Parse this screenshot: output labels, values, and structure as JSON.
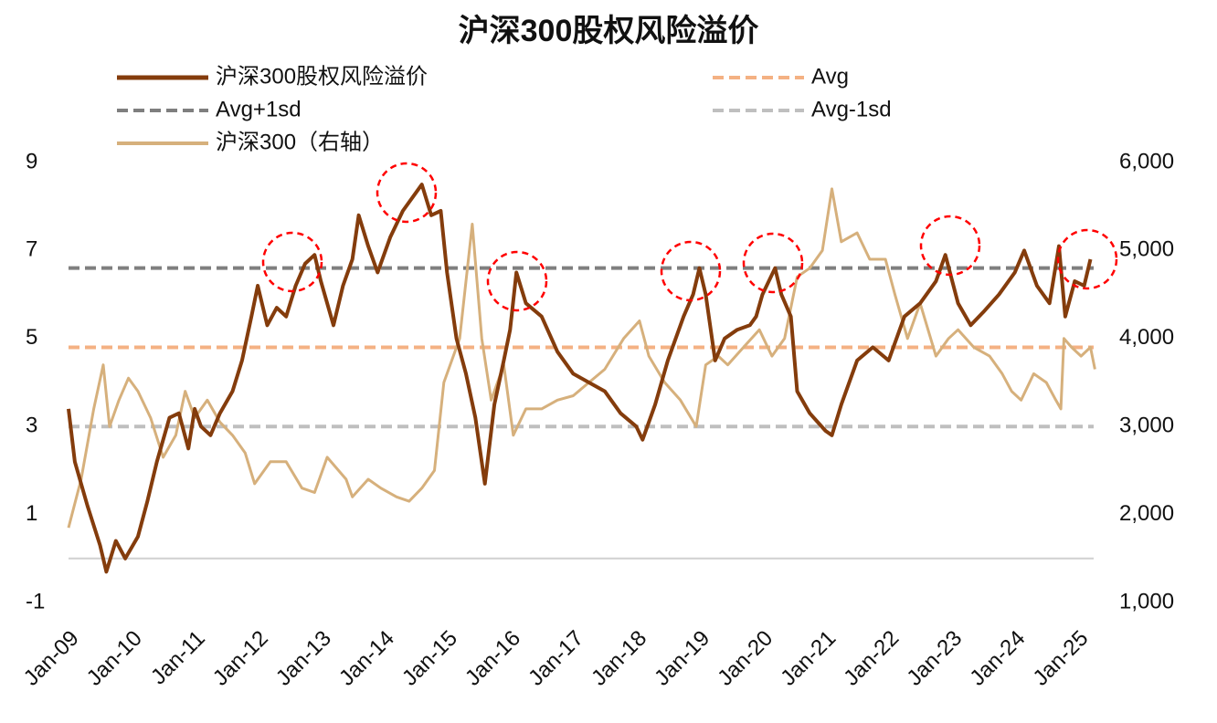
{
  "chart_data": {
    "type": "line",
    "title": "沪深300股权风险溢价",
    "xlim": [
      2009,
      2025.25
    ],
    "xticks": [
      {
        "value": 2009,
        "label": "Jan-09"
      },
      {
        "value": 2010,
        "label": "Jan-10"
      },
      {
        "value": 2011,
        "label": "Jan-11"
      },
      {
        "value": 2012,
        "label": "Jan-12"
      },
      {
        "value": 2013,
        "label": "Jan-13"
      },
      {
        "value": 2014,
        "label": "Jan-14"
      },
      {
        "value": 2015,
        "label": "Jan-15"
      },
      {
        "value": 2016,
        "label": "Jan-16"
      },
      {
        "value": 2017,
        "label": "Jan-17"
      },
      {
        "value": 2018,
        "label": "Jan-18"
      },
      {
        "value": 2019,
        "label": "Jan-19"
      },
      {
        "value": 2020,
        "label": "Jan-20"
      },
      {
        "value": 2021,
        "label": "Jan-21"
      },
      {
        "value": 2022,
        "label": "Jan-22"
      },
      {
        "value": 2023,
        "label": "Jan-23"
      },
      {
        "value": 2024,
        "label": "Jan-24"
      },
      {
        "value": 2025,
        "label": "Jan-25"
      }
    ],
    "ylim": [
      -1,
      9
    ],
    "yticks": [
      -1,
      1,
      3,
      5,
      7,
      9
    ],
    "y2lim": [
      1000,
      6000
    ],
    "y2ticks": [
      {
        "value": 1000,
        "label": "1,000"
      },
      {
        "value": 2000,
        "label": "2,000"
      },
      {
        "value": 3000,
        "label": "3,000"
      },
      {
        "value": 4000,
        "label": "4,000"
      },
      {
        "value": 5000,
        "label": "5,000"
      },
      {
        "value": 6000,
        "label": "6,000"
      }
    ],
    "baseline": 0,
    "series": [
      {
        "name": "沪深300股权风险溢价",
        "color": "#843c0c",
        "width": 4,
        "x": [
          2009.0,
          2009.1,
          2009.3,
          2009.5,
          2009.6,
          2009.75,
          2009.9,
          2010.1,
          2010.25,
          2010.4,
          2010.6,
          2010.75,
          2010.9,
          2011.0,
          2011.1,
          2011.25,
          2011.4,
          2011.6,
          2011.75,
          2011.9,
          2012.0,
          2012.15,
          2012.3,
          2012.45,
          2012.6,
          2012.75,
          2012.9,
          2013.0,
          2013.2,
          2013.35,
          2013.5,
          2013.6,
          2013.75,
          2013.9,
          2014.1,
          2014.3,
          2014.5,
          2014.6,
          2014.75,
          2014.9,
          2015.0,
          2015.15,
          2015.3,
          2015.45,
          2015.6,
          2015.75,
          2015.9,
          2016.0,
          2016.1,
          2016.25,
          2016.5,
          2016.75,
          2017.0,
          2017.25,
          2017.5,
          2017.75,
          2018.0,
          2018.1,
          2018.3,
          2018.5,
          2018.75,
          2018.9,
          2019.0,
          2019.1,
          2019.25,
          2019.4,
          2019.6,
          2019.8,
          2019.9,
          2020.0,
          2020.2,
          2020.3,
          2020.45,
          2020.55,
          2020.75,
          2021.0,
          2021.1,
          2021.25,
          2021.5,
          2021.75,
          2022.0,
          2022.25,
          2022.5,
          2022.75,
          2022.9,
          2023.1,
          2023.3,
          2023.5,
          2023.75,
          2024.0,
          2024.15,
          2024.35,
          2024.55,
          2024.7,
          2024.8,
          2024.95,
          2025.1,
          2025.2
        ],
        "values": [
          3.4,
          2.2,
          1.2,
          0.3,
          -0.3,
          0.4,
          0.0,
          0.5,
          1.3,
          2.2,
          3.2,
          3.3,
          2.5,
          3.4,
          3.0,
          2.8,
          3.3,
          3.8,
          4.5,
          5.5,
          6.2,
          5.3,
          5.7,
          5.5,
          6.2,
          6.7,
          6.9,
          6.3,
          5.3,
          6.2,
          6.8,
          7.8,
          7.1,
          6.5,
          7.3,
          7.9,
          8.3,
          8.5,
          7.8,
          7.9,
          6.5,
          5.0,
          4.2,
          3.2,
          1.7,
          3.5,
          4.5,
          5.2,
          6.5,
          5.8,
          5.5,
          4.7,
          4.2,
          4.0,
          3.8,
          3.3,
          3.0,
          2.7,
          3.5,
          4.5,
          5.5,
          6.0,
          6.6,
          6.0,
          4.5,
          5.0,
          5.2,
          5.3,
          5.5,
          6.0,
          6.6,
          6.0,
          5.5,
          3.8,
          3.3,
          2.9,
          2.8,
          3.5,
          4.5,
          4.8,
          4.5,
          5.5,
          5.8,
          6.3,
          6.9,
          5.8,
          5.3,
          5.6,
          6.0,
          6.5,
          7.0,
          6.2,
          5.8,
          7.1,
          5.5,
          6.3,
          6.2,
          6.8
        ]
      },
      {
        "name": "沪深300（右轴）",
        "color": "#d6b07c",
        "width": 3,
        "axis": "y2",
        "x": [
          2009.0,
          2009.2,
          2009.4,
          2009.55,
          2009.65,
          2009.8,
          2009.95,
          2010.1,
          2010.3,
          2010.5,
          2010.7,
          2010.85,
          2011.0,
          2011.2,
          2011.4,
          2011.6,
          2011.8,
          2011.95,
          2012.2,
          2012.45,
          2012.7,
          2012.9,
          2013.1,
          2013.4,
          2013.5,
          2013.75,
          2013.95,
          2014.2,
          2014.4,
          2014.6,
          2014.8,
          2014.95,
          2015.2,
          2015.4,
          2015.55,
          2015.7,
          2015.9,
          2016.05,
          2016.25,
          2016.5,
          2016.75,
          2017.0,
          2017.25,
          2017.5,
          2017.8,
          2018.05,
          2018.2,
          2018.45,
          2018.7,
          2018.95,
          2019.1,
          2019.3,
          2019.45,
          2019.7,
          2019.95,
          2020.15,
          2020.35,
          2020.55,
          2020.75,
          2020.95,
          2021.1,
          2021.25,
          2021.5,
          2021.7,
          2021.95,
          2022.1,
          2022.3,
          2022.5,
          2022.75,
          2022.95,
          2023.1,
          2023.35,
          2023.6,
          2023.8,
          2023.95,
          2024.1,
          2024.3,
          2024.5,
          2024.65,
          2024.73,
          2024.78,
          2024.9,
          2025.05,
          2025.2,
          2025.27
        ],
        "values": [
          1850,
          2400,
          3200,
          3700,
          3000,
          3300,
          3550,
          3400,
          3100,
          2650,
          2900,
          3400,
          3100,
          3300,
          3050,
          2900,
          2700,
          2350,
          2600,
          2600,
          2300,
          2250,
          2650,
          2400,
          2200,
          2400,
          2300,
          2200,
          2150,
          2300,
          2500,
          3500,
          4000,
          5300,
          4000,
          3300,
          3700,
          2900,
          3200,
          3200,
          3300,
          3350,
          3500,
          3650,
          4000,
          4200,
          3800,
          3500,
          3300,
          3000,
          3700,
          3800,
          3700,
          3900,
          4100,
          3800,
          4000,
          4700,
          4800,
          5000,
          5700,
          5100,
          5200,
          4900,
          4900,
          4500,
          4000,
          4400,
          3800,
          4000,
          4100,
          3900,
          3800,
          3600,
          3400,
          3300,
          3600,
          3500,
          3300,
          3200,
          4000,
          3900,
          3800,
          3900,
          3650
        ]
      }
    ],
    "reference_lines": [
      {
        "name": "Avg",
        "value": 4.8,
        "color": "#f4b183"
      },
      {
        "name": "Avg+1sd",
        "value": 6.6,
        "color": "#7f7f7f"
      },
      {
        "name": "Avg-1sd",
        "value": 3.0,
        "color": "#bfbfbf"
      }
    ]
  }
}
